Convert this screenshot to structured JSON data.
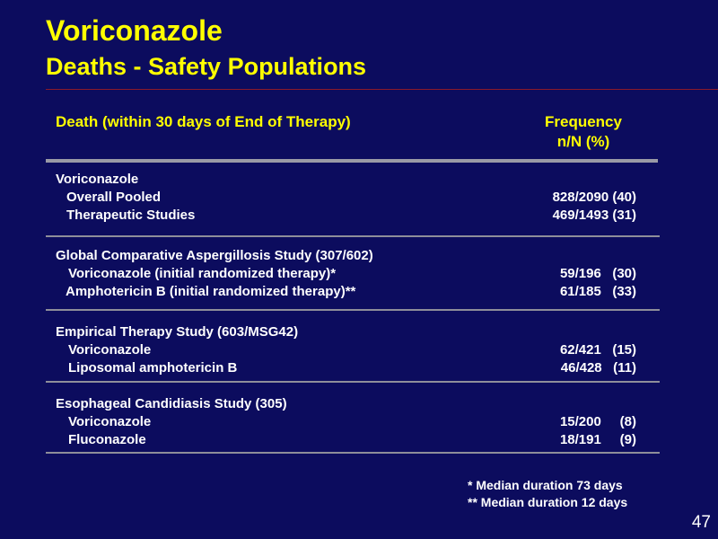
{
  "slide": {
    "title": "Voriconazole",
    "subtitle": "Deaths - Safety Populations",
    "page_number": "47"
  },
  "table": {
    "header_left": "Death (within 30 days of End of Therapy)",
    "header_right_line1": "Frequency",
    "header_right_line2": "n/N (%)",
    "sections": [
      {
        "heading": "Voriconazole",
        "rows": [
          {
            "label": "Overall Pooled",
            "value": "828/2090 (40)"
          },
          {
            "label": "Therapeutic Studies",
            "value": "469/1493 (31)"
          }
        ]
      },
      {
        "heading": "Global Comparative Aspergillosis Study (307/602)",
        "rows": [
          {
            "label": "Voriconazole (initial randomized therapy)*",
            "value": "59/196   (30)"
          },
          {
            "label": "Amphotericin B (initial randomized therapy)**",
            "value": "61/185   (33)"
          }
        ]
      },
      {
        "heading": "Empirical Therapy Study (603/MSG42)",
        "rows": [
          {
            "label": "Voriconazole",
            "value": "62/421   (15)"
          },
          {
            "label": "Liposomal amphotericin B",
            "value": "46/428   (11)"
          }
        ]
      },
      {
        "heading": "Esophageal Candidiasis Study (305)",
        "rows": [
          {
            "label": "Voriconazole",
            "value": "15/200     (8)"
          },
          {
            "label": "Fluconazole",
            "value": "18/191     (9)"
          }
        ]
      }
    ]
  },
  "footnotes": [
    "* Median duration 73 days",
    "** Median duration 12 days"
  ]
}
